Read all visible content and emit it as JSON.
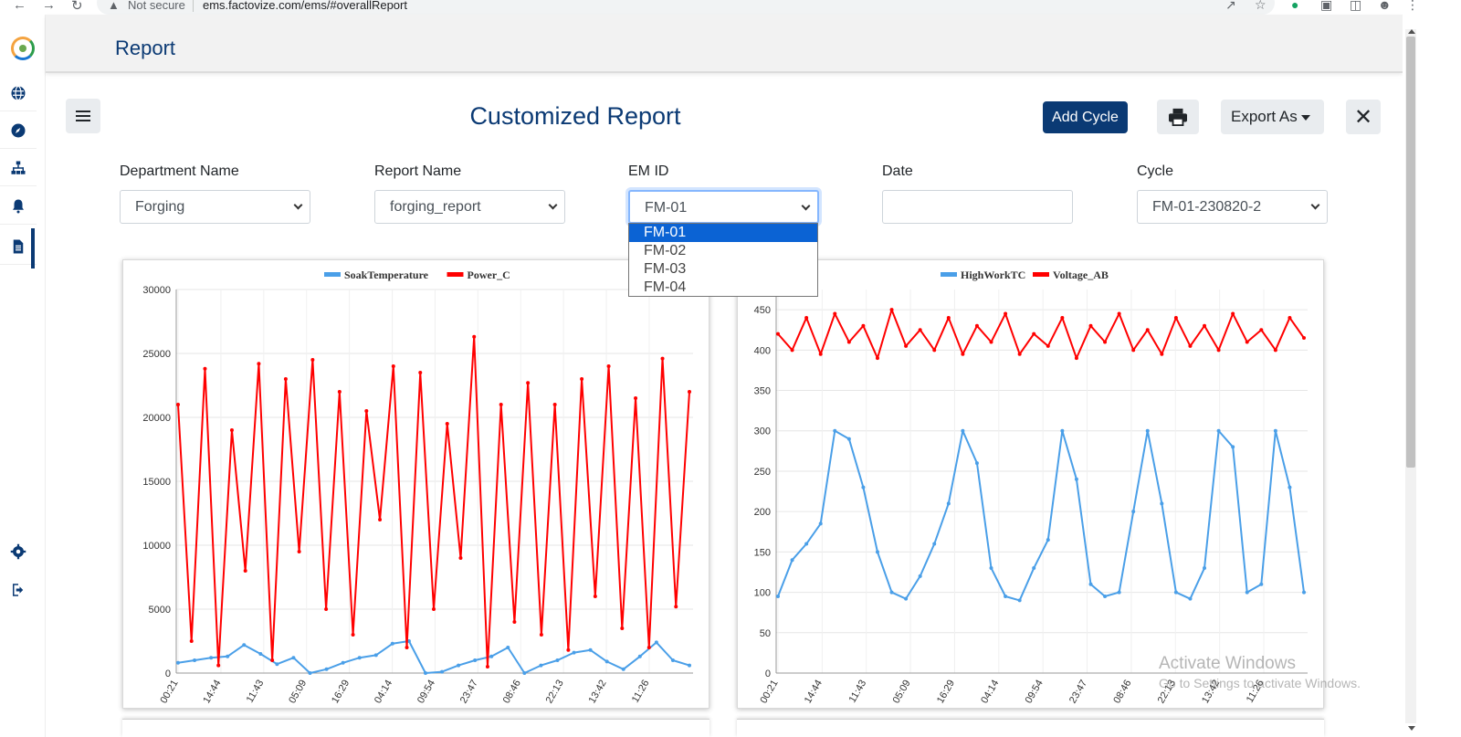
{
  "browser": {
    "security_label": "Not secure",
    "url": "ems.factovize.com/ems/#overallReport"
  },
  "header": {
    "title": "Report"
  },
  "page": {
    "title": "Customized Report",
    "add_cycle_label": "Add Cycle",
    "export_label": "Export As"
  },
  "filters": {
    "department": {
      "label": "Department Name",
      "value": "Forging"
    },
    "report": {
      "label": "Report Name",
      "value": "forging_report"
    },
    "em_id": {
      "label": "EM ID",
      "value": "FM-01",
      "options": [
        "FM-01",
        "FM-02",
        "FM-03",
        "FM-04"
      ]
    },
    "date": {
      "label": "Date",
      "value": ""
    },
    "cycle": {
      "label": "Cycle",
      "value": "FM-01-230820-2"
    }
  },
  "watermark": {
    "line1": "Activate Windows",
    "line2": "Go to Settings to activate Windows."
  },
  "colors": {
    "primary": "#0b3a74",
    "series_blue": "#4a9fe8",
    "series_red": "#ff0000"
  },
  "chart_data": [
    {
      "type": "line",
      "title": "",
      "xlabel": "",
      "ylabel": "",
      "ylim": [
        0,
        30000
      ],
      "yticks": [
        0,
        5000,
        10000,
        15000,
        20000,
        25000,
        30000
      ],
      "x_tick_labels": [
        "00:21",
        "14:44",
        "11:43",
        "05:09",
        "16:29",
        "04:14",
        "09:54",
        "23:47",
        "08:46",
        "22:13",
        "13:42",
        "11:26"
      ],
      "legend_position": "top",
      "grid": true,
      "series": [
        {
          "name": "SoakTemperature",
          "color": "#4a9fe8",
          "values": [
            800,
            1000,
            1200,
            1300,
            2200,
            1500,
            700,
            1200,
            0,
            300,
            800,
            1200,
            1400,
            2300,
            2500,
            0,
            100,
            600,
            1000,
            1300,
            2000,
            0,
            600,
            1000,
            1600,
            1800,
            900,
            300,
            1300,
            2400,
            1000,
            600
          ]
        },
        {
          "name": "Power_C",
          "color": "#ff0000",
          "values": [
            21000,
            2500,
            23800,
            600,
            19000,
            8000,
            24200,
            1000,
            23000,
            9500,
            24500,
            5000,
            22000,
            3000,
            20500,
            12000,
            24000,
            2000,
            23500,
            5000,
            19500,
            9000,
            26300,
            500,
            21000,
            4000,
            22700,
            3000,
            21000,
            1800,
            23000,
            6000,
            24000,
            3500,
            21500,
            2000,
            24600,
            5200,
            22000
          ]
        }
      ]
    },
    {
      "type": "line",
      "title": "",
      "xlabel": "",
      "ylabel": "",
      "ylim": [
        0,
        475
      ],
      "yticks": [
        0,
        50,
        100,
        150,
        200,
        250,
        300,
        350,
        400,
        450
      ],
      "x_tick_labels": [
        "00:21",
        "14:44",
        "11:43",
        "05:09",
        "16:29",
        "04:14",
        "09:54",
        "23:47",
        "08:46",
        "22:13",
        "13:42",
        "11:26"
      ],
      "legend_position": "top",
      "grid": true,
      "series": [
        {
          "name": "HighWorkTC",
          "color": "#4a9fe8",
          "values": [
            95,
            140,
            160,
            185,
            300,
            290,
            230,
            150,
            100,
            92,
            120,
            160,
            210,
            300,
            260,
            130,
            95,
            90,
            130,
            165,
            300,
            240,
            110,
            95,
            100,
            200,
            300,
            210,
            100,
            92,
            130,
            300,
            280,
            100,
            110,
            300,
            230,
            100
          ]
        },
        {
          "name": "Voltage_AB",
          "color": "#ff0000",
          "values": [
            420,
            400,
            440,
            395,
            445,
            410,
            430,
            390,
            450,
            405,
            425,
            400,
            440,
            395,
            430,
            410,
            445,
            395,
            420,
            405,
            440,
            390,
            430,
            410,
            445,
            400,
            425,
            395,
            440,
            405,
            430,
            400,
            445,
            410,
            425,
            400,
            440,
            415
          ]
        }
      ]
    }
  ]
}
